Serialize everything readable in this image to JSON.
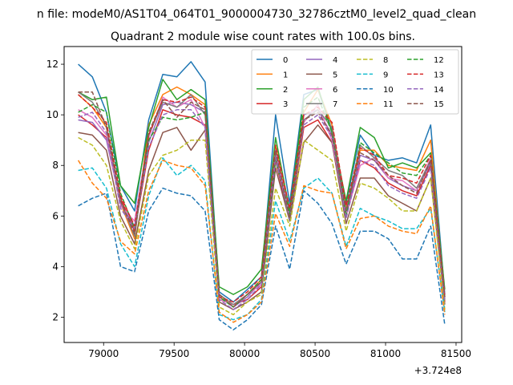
{
  "chart_data": {
    "type": "line",
    "suptitle": "n file: modeM0/AS1T04_064T01_9000004730_32786cztM0_level2_quad_clean",
    "title": "Quadrant 2 module wise count rates with 100.0s bins.",
    "xlabel": "",
    "ylabel": "",
    "x_offset_label": "+3.724e8",
    "xlim": [
      78720,
      81540
    ],
    "ylim": [
      1.0,
      12.7
    ],
    "xticks": [
      79000,
      79500,
      80000,
      80500,
      81000,
      81500
    ],
    "xtick_labels": [
      "79000",
      "79500",
      "80000",
      "80500",
      "81000",
      "81500"
    ],
    "yticks": [
      2,
      4,
      6,
      8,
      10,
      12
    ],
    "ytick_labels": [
      "2",
      "4",
      "6",
      "8",
      "10",
      "12"
    ],
    "legend_position": "top-right",
    "legend_columns": 4,
    "x": [
      78820,
      78920,
      79020,
      79120,
      79220,
      79320,
      79420,
      79520,
      79620,
      79720,
      79820,
      79920,
      80020,
      80120,
      80220,
      80320,
      80420,
      80520,
      80620,
      80720,
      80820,
      80920,
      81020,
      81120,
      81220,
      81320,
      81420
    ],
    "series": [
      {
        "name": "0",
        "color": "#1f77b4",
        "dash": "solid",
        "values": [
          12.0,
          11.5,
          10.1,
          7.2,
          6.2,
          9.8,
          11.6,
          11.5,
          12.1,
          11.3,
          3.0,
          2.6,
          3.1,
          3.6,
          10.0,
          6.5,
          10.8,
          11.0,
          9.4,
          6.5,
          9.2,
          8.4,
          8.2,
          8.3,
          8.1,
          9.6,
          2.9
        ]
      },
      {
        "name": "1",
        "color": "#ff7f0e",
        "dash": "solid",
        "values": [
          10.8,
          10.3,
          9.5,
          6.5,
          5.1,
          9.6,
          10.8,
          11.1,
          10.8,
          10.4,
          2.9,
          2.4,
          2.9,
          3.5,
          8.8,
          6.0,
          10.1,
          11.0,
          9.6,
          6.3,
          8.6,
          8.6,
          8.0,
          7.9,
          7.8,
          9.0,
          2.8
        ]
      },
      {
        "name": "2",
        "color": "#2ca02c",
        "dash": "solid",
        "values": [
          10.9,
          10.6,
          10.7,
          7.2,
          6.5,
          9.5,
          11.4,
          10.6,
          11.0,
          10.6,
          3.2,
          2.9,
          3.2,
          3.9,
          9.1,
          6.2,
          10.6,
          11.1,
          9.3,
          6.6,
          9.5,
          9.1,
          7.9,
          8.1,
          7.9,
          8.5,
          3.1
        ]
      },
      {
        "name": "3",
        "color": "#d62728",
        "dash": "solid",
        "values": [
          10.0,
          9.6,
          9.1,
          6.7,
          5.4,
          8.6,
          10.2,
          10.0,
          9.9,
          9.6,
          2.7,
          2.5,
          2.7,
          3.2,
          8.2,
          5.8,
          9.5,
          9.8,
          8.9,
          6.0,
          8.2,
          7.9,
          7.3,
          7.0,
          6.8,
          8.0,
          2.6
        ]
      },
      {
        "name": "4",
        "color": "#9467bd",
        "dash": "solid",
        "values": [
          9.8,
          9.7,
          9.0,
          6.5,
          5.6,
          8.9,
          10.4,
          10.5,
          10.4,
          10.1,
          2.8,
          2.4,
          2.8,
          3.4,
          8.6,
          6.0,
          10.0,
          10.2,
          9.2,
          6.1,
          8.4,
          8.2,
          7.5,
          7.2,
          7.0,
          8.1,
          2.9
        ]
      },
      {
        "name": "5",
        "color": "#8c564b",
        "dash": "solid",
        "values": [
          9.3,
          9.2,
          8.6,
          6.0,
          4.9,
          7.8,
          9.3,
          9.5,
          8.6,
          9.4,
          2.6,
          2.3,
          2.6,
          3.0,
          7.9,
          5.8,
          8.9,
          9.6,
          8.9,
          5.7,
          7.5,
          7.5,
          6.8,
          6.5,
          6.2,
          7.5,
          2.5
        ]
      },
      {
        "name": "6",
        "color": "#e377c2",
        "dash": "solid",
        "values": [
          10.2,
          9.9,
          9.2,
          6.4,
          5.8,
          9.1,
          10.7,
          10.3,
          10.6,
          9.5,
          2.7,
          2.5,
          2.9,
          3.3,
          8.5,
          5.9,
          9.7,
          10.4,
          9.0,
          6.0,
          8.0,
          8.3,
          7.5,
          7.4,
          7.0,
          8.3,
          2.8
        ]
      },
      {
        "name": "7",
        "color": "#7f7f7f",
        "dash": "solid",
        "values": [
          10.9,
          10.5,
          9.6,
          6.6,
          5.2,
          9.2,
          10.5,
          10.3,
          10.8,
          10.0,
          2.9,
          2.5,
          2.9,
          3.4,
          8.4,
          5.8,
          9.8,
          10.2,
          9.5,
          6.2,
          8.8,
          8.3,
          7.8,
          7.6,
          7.1,
          8.2,
          2.7
        ]
      },
      {
        "name": "8",
        "color": "#bcbd22",
        "dash": "dashed",
        "values": [
          9.1,
          8.8,
          8.0,
          5.8,
          4.7,
          7.6,
          8.4,
          8.6,
          9.0,
          9.0,
          2.4,
          2.1,
          2.6,
          2.9,
          7.1,
          5.6,
          9.0,
          8.6,
          8.2,
          5.4,
          7.3,
          7.1,
          6.7,
          6.2,
          6.2,
          7.5,
          2.3
        ]
      },
      {
        "name": "9",
        "color": "#17becf",
        "dash": "dashed",
        "values": [
          7.8,
          7.9,
          7.1,
          4.9,
          4.0,
          6.8,
          8.3,
          7.6,
          8.0,
          7.4,
          2.1,
          1.9,
          2.1,
          2.7,
          6.6,
          5.0,
          7.1,
          7.5,
          6.9,
          4.8,
          6.3,
          6.0,
          5.8,
          5.5,
          5.5,
          6.3,
          2.2
        ]
      },
      {
        "name": "10",
        "color": "#1f77b4",
        "dash": "dashed",
        "values": [
          6.4,
          6.7,
          6.9,
          4.0,
          3.8,
          6.2,
          7.1,
          6.9,
          6.8,
          6.2,
          1.9,
          1.5,
          1.9,
          2.5,
          5.6,
          3.9,
          7.0,
          6.5,
          5.7,
          4.1,
          5.4,
          5.4,
          5.1,
          4.3,
          4.3,
          5.6,
          1.7
        ]
      },
      {
        "name": "11",
        "color": "#ff7f0e",
        "dash": "dashed",
        "values": [
          8.2,
          7.3,
          6.7,
          5.0,
          4.5,
          7.0,
          8.2,
          8.0,
          7.9,
          7.2,
          2.2,
          1.8,
          2.1,
          2.6,
          6.1,
          4.8,
          7.2,
          7.0,
          6.9,
          4.7,
          5.9,
          6.0,
          5.6,
          5.4,
          5.3,
          6.4,
          2.1
        ]
      },
      {
        "name": "12",
        "color": "#2ca02c",
        "dash": "dashed",
        "values": [
          10.1,
          10.4,
          10.1,
          6.9,
          5.5,
          9.0,
          9.9,
          9.8,
          9.9,
          10.1,
          2.8,
          2.4,
          2.9,
          3.5,
          8.2,
          6.1,
          10.3,
          10.7,
          9.3,
          6.0,
          8.9,
          8.5,
          8.1,
          7.7,
          7.6,
          8.4,
          2.8
        ]
      },
      {
        "name": "13",
        "color": "#d62728",
        "dash": "dashed",
        "values": [
          10.8,
          10.3,
          9.7,
          6.8,
          5.6,
          9.2,
          10.6,
          10.5,
          10.7,
          10.3,
          2.8,
          2.6,
          3.0,
          3.6,
          8.8,
          6.3,
          10.0,
          10.3,
          9.7,
          6.4,
          8.7,
          8.4,
          7.6,
          7.5,
          7.3,
          8.4,
          2.8
        ]
      },
      {
        "name": "14",
        "color": "#9467bd",
        "dash": "dashed",
        "values": [
          9.9,
          10.1,
          9.3,
          6.3,
          5.5,
          8.7,
          10.0,
          10.2,
          10.2,
          9.5,
          2.7,
          2.3,
          2.7,
          3.3,
          8.3,
          5.9,
          9.6,
          10.0,
          9.1,
          5.9,
          8.2,
          8.0,
          7.2,
          6.9,
          6.7,
          7.9,
          2.6
        ]
      },
      {
        "name": "15",
        "color": "#8c564b",
        "dash": "dashed",
        "values": [
          10.9,
          10.9,
          9.5,
          6.6,
          5.3,
          9.3,
          10.6,
          9.9,
          10.5,
          10.2,
          2.9,
          2.4,
          2.9,
          3.4,
          8.6,
          5.9,
          9.8,
          10.1,
          9.2,
          6.2,
          8.5,
          8.2,
          7.6,
          7.2,
          6.9,
          8.2,
          2.8
        ]
      }
    ]
  }
}
